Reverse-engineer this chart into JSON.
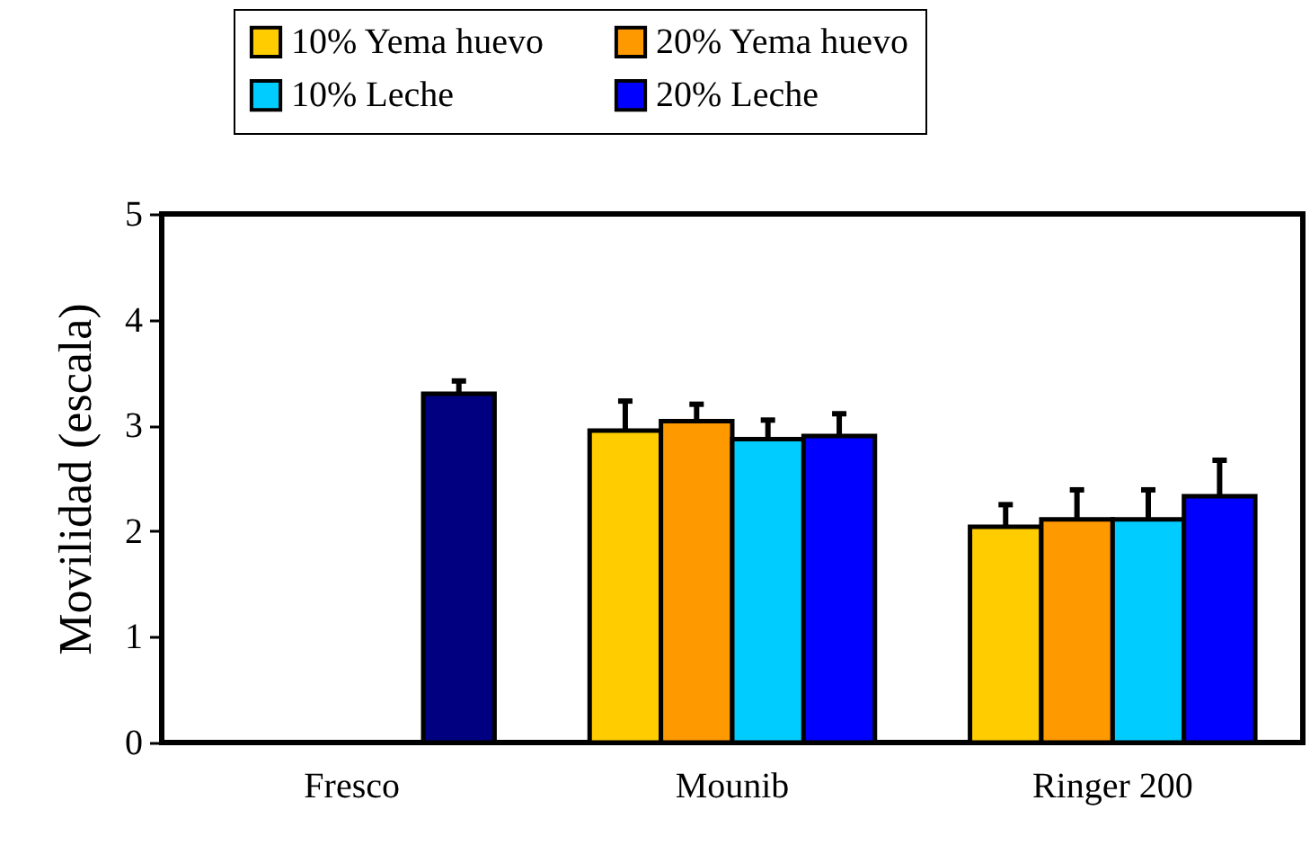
{
  "chart_data": {
    "type": "bar",
    "ylabel": "Movilidad (escala)",
    "categories": [
      "Fresco",
      "Mounib",
      "Ringer 200"
    ],
    "series": [
      {
        "name": "10% Yema huevo",
        "color": "#ffcc00",
        "values": [
          null,
          2.95,
          2.04
        ],
        "errors": [
          null,
          [
            2.95,
            3.23
          ],
          [
            2.04,
            2.25
          ]
        ]
      },
      {
        "name": "20% Yema huevo",
        "color": "#ff9900",
        "values": [
          null,
          3.04,
          2.11
        ],
        "errors": [
          null,
          [
            3.04,
            3.2
          ],
          [
            2.11,
            2.39
          ]
        ]
      },
      {
        "name": "10% Leche",
        "color": "#00ccff",
        "values": [
          null,
          2.87,
          2.11
        ],
        "errors": [
          null,
          [
            2.87,
            3.05
          ],
          [
            2.11,
            2.39
          ]
        ]
      },
      {
        "name": "20% Leche",
        "color": "#0000ff",
        "colors": [
          "#000080",
          "#0000ff",
          "#0000ff"
        ],
        "values": [
          3.3,
          2.9,
          2.33
        ],
        "errors": [
          [
            3.3,
            3.42
          ],
          [
            2.9,
            3.11
          ],
          [
            2.33,
            2.67
          ]
        ]
      }
    ],
    "ylim": [
      0,
      5
    ],
    "yticks": [
      0,
      1,
      2,
      3,
      4,
      5
    ],
    "grid": false,
    "legend": "top"
  }
}
